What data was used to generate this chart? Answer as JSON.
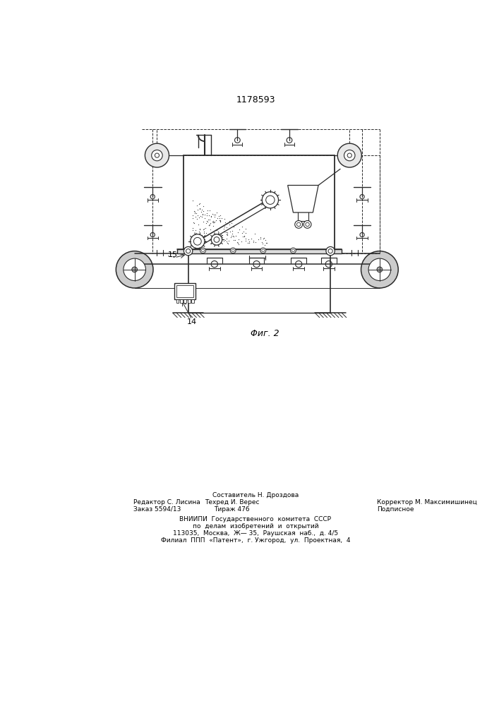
{
  "title": "1178593",
  "fig_label": "Φиг. 2",
  "label_14": "14",
  "label_15": "15",
  "bg_color": "#ffffff",
  "line_color": "#2a2a2a",
  "footer_line1_left": "Редактор С. Лисина",
  "footer_line2_left": "Заказ 5594/13",
  "footer_line1_center": "Составитель Н. Дроздова",
  "footer_line2_center": "Техред И. Верес",
  "footer_line3_center": "Тираж 476",
  "footer_line1_right": "Корректор М. Максимишинец",
  "footer_line2_right": "Подписное",
  "footer_vniipи": "ВНИИПИ  Государственного  комитета  СССР",
  "footer_po_delam": "по  делам  изобретений  и  открытий",
  "footer_address1": "113035,  Москва,  Ж— 35,  Раушская  наб.,  д. 4/5",
  "footer_filial": "Филиал  ППП  «Патент»,  г. Ужгород,  ул.  Проектная,  4"
}
